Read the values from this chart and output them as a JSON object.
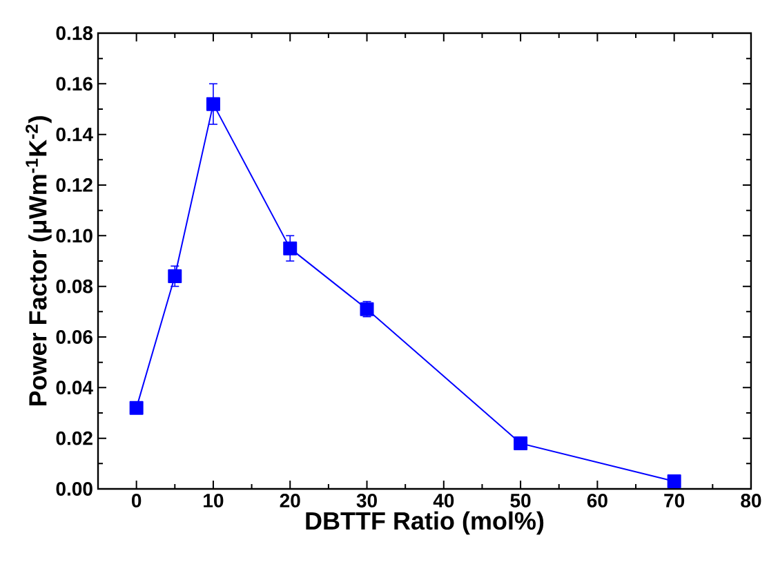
{
  "chart_data": {
    "type": "line",
    "xlabel": "DBTTF Ratio (mol%)",
    "ylabel": "Power Factor (μWm$^{-1}$K$^{-2}$)",
    "x": [
      0,
      5,
      10,
      20,
      30,
      50,
      70
    ],
    "series": [
      {
        "color": "#0000ff",
        "values": [
          0.032,
          0.084,
          0.152,
          0.095,
          0.071,
          0.018,
          0.003
        ],
        "errors": [
          null,
          0.004,
          0.008,
          0.005,
          0.003,
          null,
          null
        ]
      }
    ],
    "marker": "square",
    "line_style": "solid",
    "xlim": [
      -5,
      80
    ],
    "xticks": [
      0,
      10,
      20,
      30,
      40,
      50,
      60,
      70,
      80
    ],
    "ylim": [
      0,
      0.18
    ],
    "yticks": [
      {
        "value": 0,
        "label": "0.00"
      },
      {
        "value": 0.02,
        "label": "0.02"
      },
      {
        "value": 0.04,
        "label": "0.04"
      },
      {
        "value": 0.06,
        "label": "0.06"
      },
      {
        "value": 0.08,
        "label": "0.08"
      },
      {
        "value": 0.1,
        "label": "0.10"
      },
      {
        "value": 0.12,
        "label": "0.12"
      },
      {
        "value": 0.14,
        "label": "0.14"
      },
      {
        "value": 0.16,
        "label": "0.16"
      },
      {
        "value": 0.18,
        "label": "0.18"
      }
    ]
  }
}
